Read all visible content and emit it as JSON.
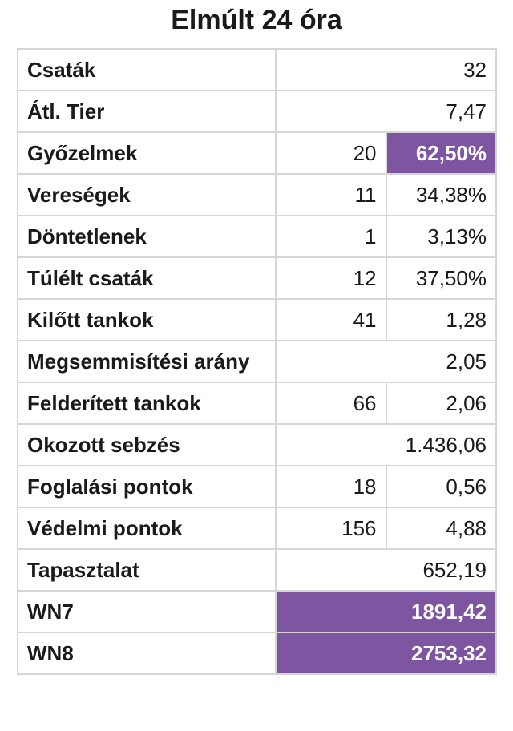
{
  "title": "Elmúlt 24 óra",
  "colors": {
    "highlight": "#7e55a1",
    "border": "#d6d6d6"
  },
  "rows": [
    {
      "label": "Csaták",
      "value": "32"
    },
    {
      "label": "Átl. Tier",
      "value": "7,47"
    },
    {
      "label": "Győzelmek",
      "count": "20",
      "value": "62,50%"
    },
    {
      "label": "Vereségek",
      "count": "11",
      "value": "34,38%"
    },
    {
      "label": "Döntetlenek",
      "count": "1",
      "value": "3,13%"
    },
    {
      "label": "Túlélt csaták",
      "count": "12",
      "value": "37,50%"
    },
    {
      "label": "Kilőtt tankok",
      "count": "41",
      "value": "1,28"
    },
    {
      "label": "Megsemmisítési arány",
      "value": "2,05"
    },
    {
      "label": "Felderített tankok",
      "count": "66",
      "value": "2,06"
    },
    {
      "label": "Okozott sebzés",
      "value": "1.436,06"
    },
    {
      "label": "Foglalási pontok",
      "count": "18",
      "value": "0,56"
    },
    {
      "label": "Védelmi pontok",
      "count": "156",
      "value": "4,88"
    },
    {
      "label": "Tapasztalat",
      "value": "652,19"
    },
    {
      "label": "WN7",
      "value": "1891,42"
    },
    {
      "label": "WN8",
      "value": "2753,32"
    }
  ]
}
